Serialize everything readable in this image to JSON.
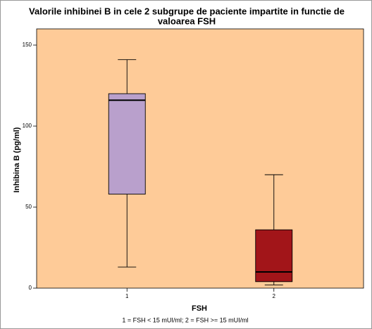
{
  "chart_data": {
    "type": "box",
    "title": [
      "Valorile inhibinei B in cele 2 subgrupe de paciente impartite in functie de",
      "valoarea FSH"
    ],
    "x_label": "FSH",
    "y_label": "Inhibina B (pg/ml)",
    "note": "1 = FSH < 15 mUI/ml; 2 = FSH >= 15 mUI/ml",
    "categories": [
      "1",
      "2"
    ],
    "boxes": [
      {
        "color": "#b9a0cc",
        "min": 13,
        "q1": 58,
        "median": 116,
        "q3": 120,
        "max": 141
      },
      {
        "color": "#a21519",
        "min": 2,
        "q1": 4,
        "median": 10,
        "q3": 36,
        "max": 70
      }
    ],
    "ylim": [
      0,
      160
    ],
    "yticks": [
      0,
      50,
      100,
      150
    ],
    "background": "#fecb98"
  }
}
